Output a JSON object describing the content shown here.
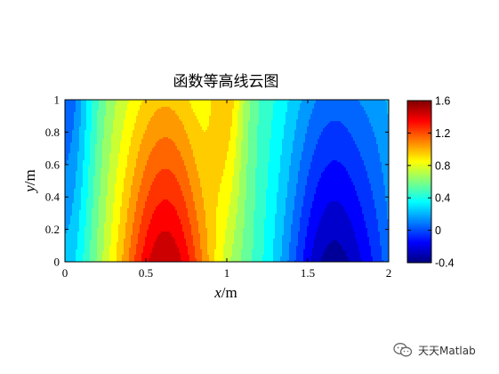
{
  "chart_data": {
    "type": "heatmap",
    "title": "函数等高线云图",
    "xlabel": {
      "var": "x",
      "unit": "/m"
    },
    "ylabel": {
      "var": "y",
      "unit": "/m"
    },
    "xlim": [
      0,
      2
    ],
    "ylim": [
      0,
      1
    ],
    "xticks": [
      "0",
      "0.5",
      "1",
      "1.5",
      "2"
    ],
    "yticks": [
      "0",
      "0.2",
      "0.4",
      "0.6",
      "0.8",
      "1"
    ],
    "colorbar": {
      "lim": [
        -0.4,
        1.6
      ],
      "ticks": [
        "1.6",
        "1.2",
        "0.8",
        "0.4",
        "0",
        "-0.4"
      ],
      "colormap": "jet"
    },
    "max": {
      "x": 0.62,
      "y": 0.12,
      "value": 1.6
    },
    "min": {
      "x": 1.66,
      "y": 0.12,
      "value": -0.4
    }
  },
  "watermark": {
    "text": "天天Matlab",
    "icon": "wechat-icon"
  }
}
